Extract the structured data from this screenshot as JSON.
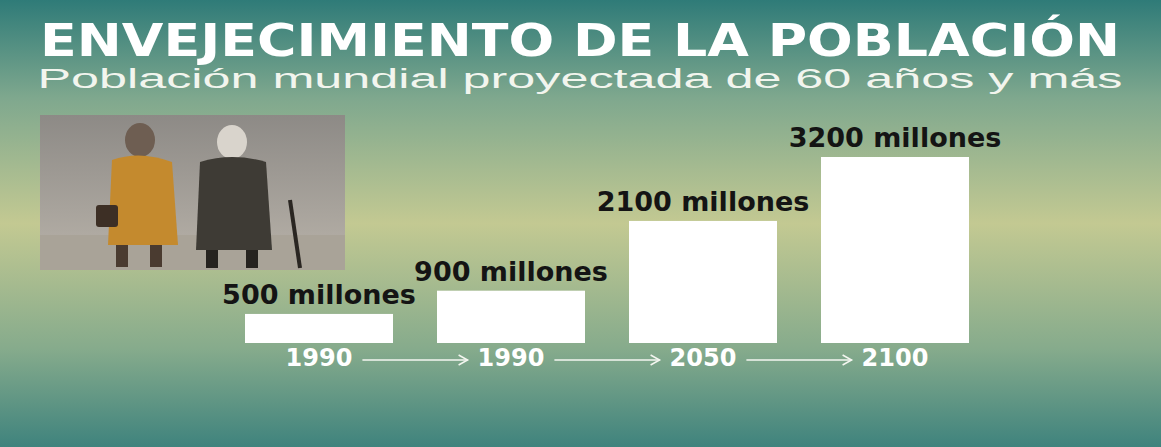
{
  "chart_data": {
    "type": "bar",
    "title": "ENVEJECIMIENTO DE LA POBLACIÓN",
    "subtitle": "Población mundial proyectada de 60 años y más",
    "categories": [
      "1990",
      "1990",
      "2050",
      "2100"
    ],
    "values": [
      500,
      900,
      2100,
      3200
    ],
    "value_labels": [
      "500 millones",
      "900 millones",
      "2100 millones",
      "3200 millones"
    ],
    "color": "#ffffff",
    "data_labels": true,
    "tick_labels": "x",
    "grid": false
  }
}
